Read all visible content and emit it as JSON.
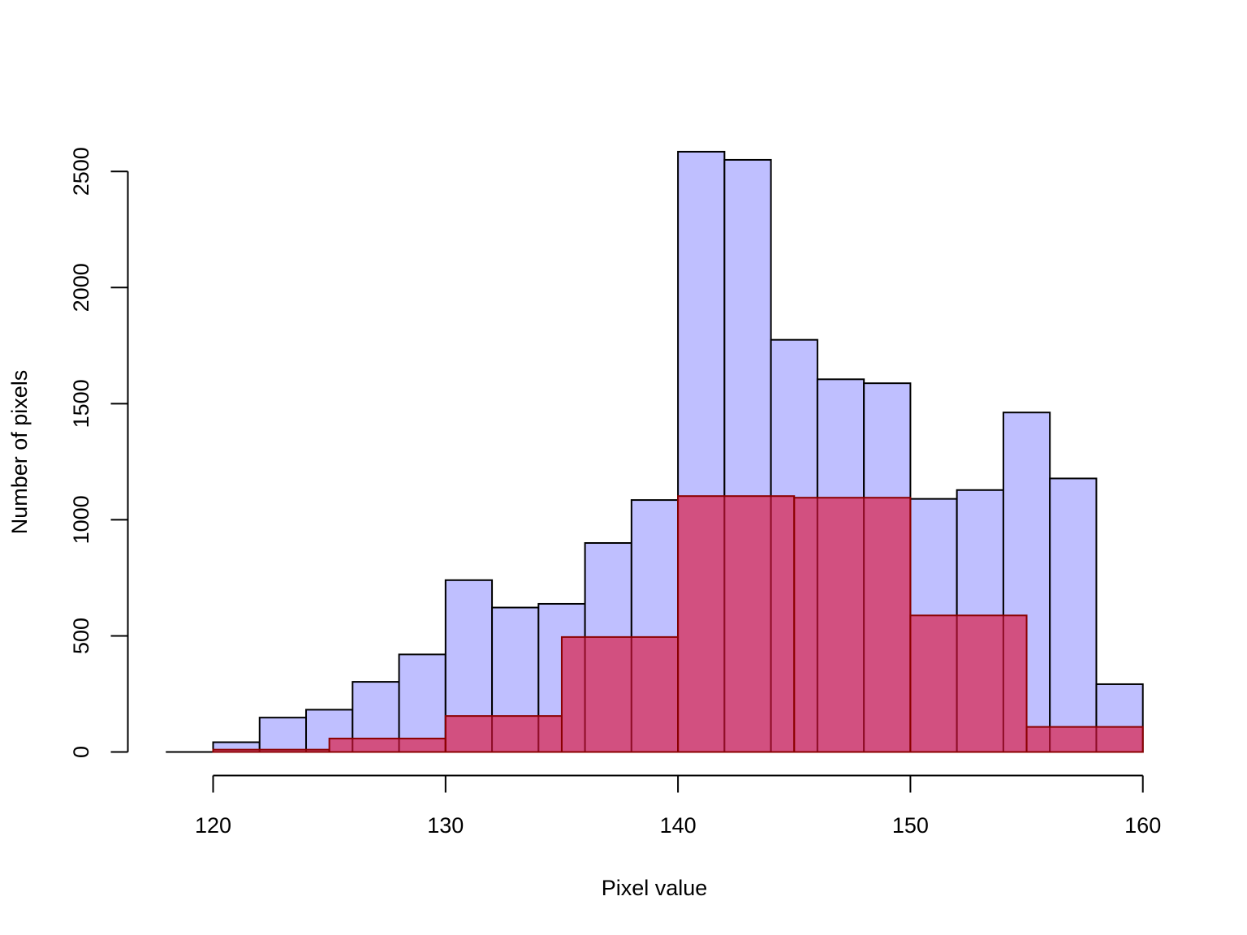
{
  "chart_data": {
    "type": "bar",
    "title": "",
    "xlabel": "Pixel value",
    "ylabel": "Number of pixels",
    "xlim": [
      118,
      160
    ],
    "ylim": [
      0,
      2600
    ],
    "x_ticks": [
      120,
      130,
      140,
      150,
      160
    ],
    "y_ticks": [
      0,
      500,
      1000,
      1500,
      2000,
      2500
    ],
    "grid": false,
    "legend": "none",
    "series": [
      {
        "color": "#bfbfff",
        "stroke": "#000000",
        "bins": [
          {
            "x0": 118,
            "x1": 120,
            "value": 0
          },
          {
            "x0": 120,
            "x1": 122,
            "value": 42
          },
          {
            "x0": 122,
            "x1": 124,
            "value": 148
          },
          {
            "x0": 124,
            "x1": 126,
            "value": 182
          },
          {
            "x0": 126,
            "x1": 128,
            "value": 302
          },
          {
            "x0": 128,
            "x1": 130,
            "value": 420
          },
          {
            "x0": 130,
            "x1": 132,
            "value": 740
          },
          {
            "x0": 132,
            "x1": 134,
            "value": 622
          },
          {
            "x0": 134,
            "x1": 136,
            "value": 638
          },
          {
            "x0": 136,
            "x1": 138,
            "value": 900
          },
          {
            "x0": 138,
            "x1": 140,
            "value": 1085
          },
          {
            "x0": 140,
            "x1": 142,
            "value": 2585
          },
          {
            "x0": 142,
            "x1": 144,
            "value": 2550
          },
          {
            "x0": 144,
            "x1": 146,
            "value": 1775
          },
          {
            "x0": 146,
            "x1": 148,
            "value": 1605
          },
          {
            "x0": 148,
            "x1": 150,
            "value": 1588
          },
          {
            "x0": 150,
            "x1": 152,
            "value": 1090
          },
          {
            "x0": 152,
            "x1": 154,
            "value": 1128
          },
          {
            "x0": 154,
            "x1": 156,
            "value": 1462
          },
          {
            "x0": 156,
            "x1": 158,
            "value": 1178
          },
          {
            "x0": 158,
            "x1": 160,
            "value": 292
          }
        ]
      },
      {
        "color": "rgba(220,20,60,0.65)",
        "stroke": "#8b0000",
        "bins": [
          {
            "x0": 120,
            "x1": 125,
            "value": 10
          },
          {
            "x0": 125,
            "x1": 130,
            "value": 58
          },
          {
            "x0": 130,
            "x1": 135,
            "value": 155
          },
          {
            "x0": 135,
            "x1": 140,
            "value": 495
          },
          {
            "x0": 140,
            "x1": 145,
            "value": 1102
          },
          {
            "x0": 145,
            "x1": 150,
            "value": 1095
          },
          {
            "x0": 150,
            "x1": 155,
            "value": 588
          },
          {
            "x0": 155,
            "x1": 160,
            "value": 108
          }
        ]
      }
    ]
  }
}
